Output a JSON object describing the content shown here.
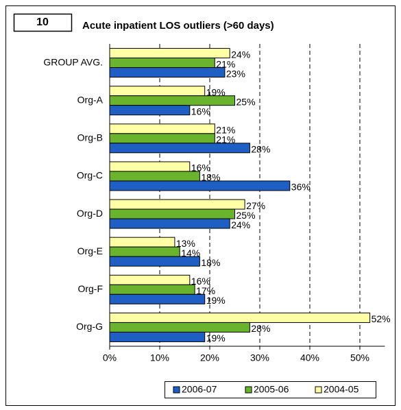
{
  "badge": "10",
  "chart_data": {
    "type": "hbar",
    "title": "Acute inpatient  LOS outliers (>60 days)",
    "categories": [
      "GROUP AVG.",
      "Org-A",
      "Org-B",
      "Org-C",
      "Org-D",
      "Org-E",
      "Org-F",
      "Org-G"
    ],
    "series": [
      {
        "name": "2006-07",
        "color": "#1f5fc4",
        "values": [
          23,
          16,
          28,
          36,
          24,
          18,
          19,
          19
        ],
        "value_labels": [
          "23%",
          "16%",
          "28%",
          "36%",
          "24%",
          "18%",
          "19%",
          "19%"
        ]
      },
      {
        "name": "2005-06",
        "color": "#6ab42d",
        "values": [
          21,
          25,
          21,
          18,
          25,
          14,
          17,
          28
        ],
        "value_labels": [
          "21%",
          "25%",
          "21%",
          "18%",
          "25%",
          "14%",
          "17%",
          "28%"
        ]
      },
      {
        "name": "2004-05",
        "color": "#ffffa6",
        "values": [
          24,
          19,
          21,
          16,
          27,
          13,
          16,
          52
        ],
        "value_labels": [
          "24%",
          "19%",
          "21%",
          "16%",
          "27%",
          "13%",
          "16%",
          "52%"
        ]
      }
    ],
    "xlim": [
      0,
      55
    ],
    "xticks": [
      {
        "value": 0,
        "label": "0%"
      },
      {
        "value": 10,
        "label": "10%"
      },
      {
        "value": 20,
        "label": "20%"
      },
      {
        "value": 30,
        "label": "30%"
      },
      {
        "value": 40,
        "label": "40%"
      },
      {
        "value": 50,
        "label": "50%"
      }
    ],
    "grid": true,
    "legend": "bottom"
  }
}
